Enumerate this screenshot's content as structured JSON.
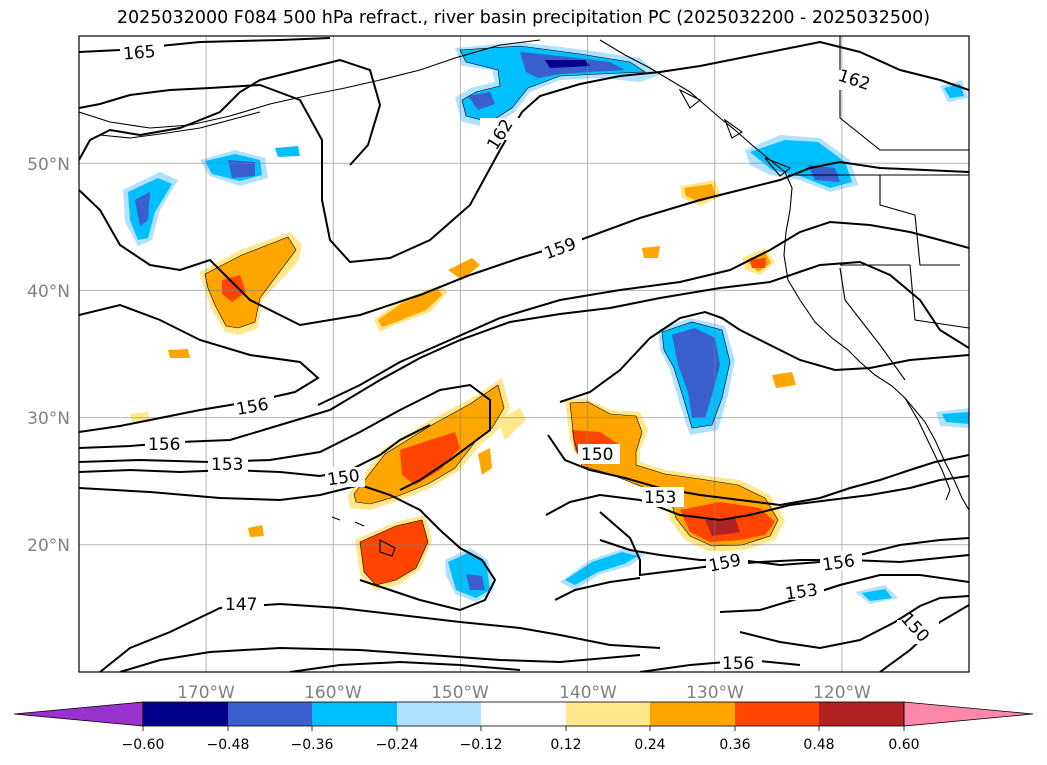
{
  "title": "2025032000 F084 500 hPa refract., river basin precipitation PC (2025032200 - 2025032500)",
  "map": {
    "projection": "PlateCarree",
    "lon_range": [
      -180,
      -110
    ],
    "lat_range": [
      10,
      60
    ],
    "lon_ticks": [
      "170°W",
      "160°W",
      "150°W",
      "140°W",
      "130°W",
      "120°W"
    ],
    "lat_ticks": [
      "20°N",
      "30°N",
      "40°N",
      "50°N"
    ],
    "gridlines": true
  },
  "contour_labels": [
    "165",
    "162",
    "162",
    "159",
    "156",
    "156",
    "153",
    "150",
    "150",
    "153",
    "159",
    "156",
    "153",
    "147",
    "156",
    "150"
  ],
  "colorbar": {
    "orientation": "horizontal",
    "extend": "both",
    "ticks": [
      "−0.60",
      "−0.48",
      "−0.36",
      "−0.24",
      "−0.12",
      "0.12",
      "0.24",
      "0.36",
      "0.48",
      "0.60"
    ],
    "colors": {
      "below": "#9932cc",
      "-0.60": "#00008b",
      "-0.48": "#3a5fcd",
      "-0.36": "#00bfff",
      "-0.24": "#b0e2ff",
      "-0.12": "#ffffff",
      "0.12": "#ffe78a",
      "0.24": "#ffa500",
      "0.36": "#ff4500",
      "0.48": "#b22222",
      "above": "#ff88aa"
    }
  }
}
